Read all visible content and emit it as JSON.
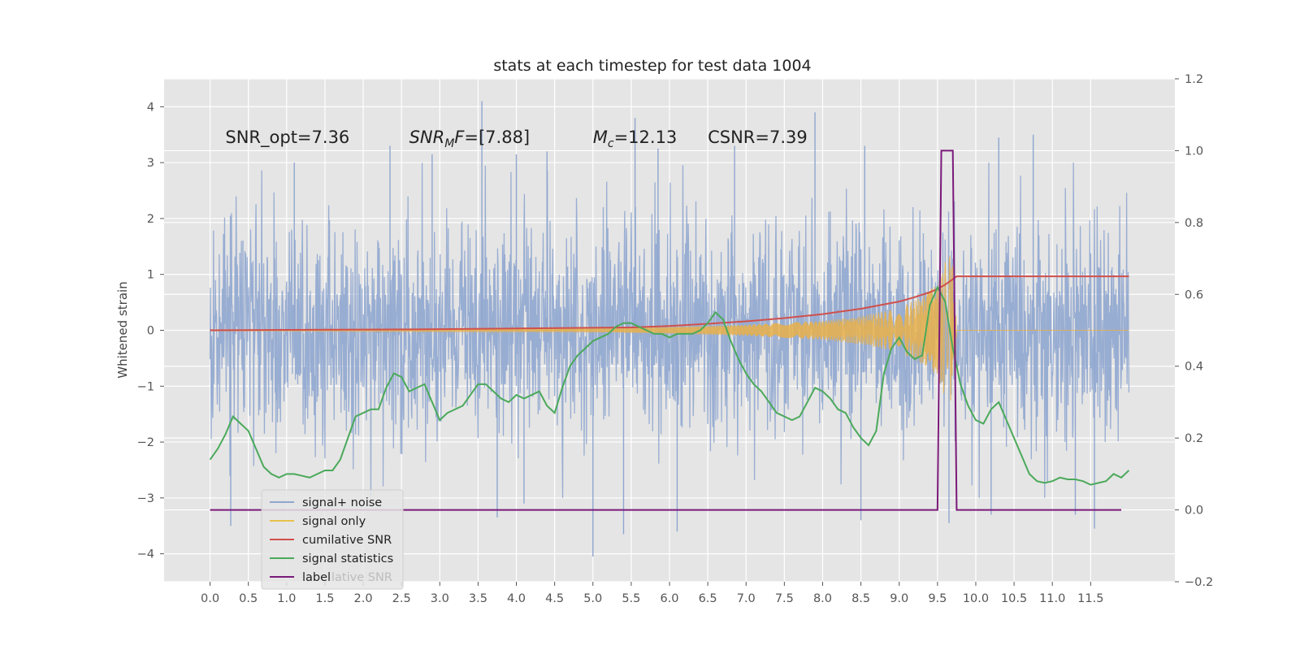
{
  "chart_data": {
    "type": "line",
    "title": "stats at each timestep for test data 1004",
    "ylabel": "Whitened strain",
    "xlabel": "",
    "xlim": [
      -0.6,
      12.6
    ],
    "ylim": [
      -4.5,
      4.5
    ],
    "y2lim": [
      -0.2,
      1.2
    ],
    "grid": true,
    "background": "#e5e5e5",
    "x_ticks": [
      "0.0",
      "0.5",
      "1.0",
      "1.5",
      "2.0",
      "2.5",
      "3.0",
      "3.5",
      "4.0",
      "4.5",
      "5.0",
      "5.5",
      "6.0",
      "6.5",
      "7.0",
      "7.5",
      "8.0",
      "8.5",
      "9.0",
      "9.5",
      "10.0",
      "10.5",
      "11.0",
      "11.5"
    ],
    "y_ticks": [
      "4",
      "3",
      "2",
      "1",
      "0",
      "−1",
      "−2",
      "−3",
      "−4"
    ],
    "y2_ticks": [
      "1.2",
      "1.0",
      "0.8",
      "0.6",
      "0.4",
      "0.2",
      "0.0",
      "−0.2"
    ],
    "annotations": [
      {
        "text": "SNR_opt=7.36",
        "x": 0.2,
        "y": 3.35
      },
      {
        "text": "SNR_MF=[7.88]",
        "x": 2.6,
        "y": 3.35
      },
      {
        "text": "M_c=12.13",
        "x": 5.0,
        "y": 3.35
      },
      {
        "text": "CSNR=7.39",
        "x": 6.5,
        "y": 3.35
      }
    ],
    "legend": {
      "position": "lower-left",
      "entries": [
        {
          "label": "signal+ noise",
          "color": "#8fa6cf"
        },
        {
          "label": "signal only",
          "color": "#e8c14a"
        },
        {
          "label": "cumilative SNR",
          "color": "#d0504c"
        },
        {
          "label": "signal statistics",
          "color": "#4aa95a"
        },
        {
          "label": "label",
          "color": "#7a1a7a"
        }
      ],
      "ghost_text": "lative SNR"
    },
    "series": [
      {
        "name": "signal+ noise",
        "kind": "noise-band",
        "axis": "left",
        "color": "#8fa6cf",
        "x_range": [
          0.0,
          12.0
        ],
        "typical_envelope": [
          -2.0,
          2.0
        ],
        "spikes": [
          {
            "x": 0.27,
            "y": -3.5
          },
          {
            "x": 3.55,
            "y": 4.1
          },
          {
            "x": 5.0,
            "y": -4.05
          },
          {
            "x": 5.4,
            "y": -3.65
          },
          {
            "x": 5.55,
            "y": 3.8
          },
          {
            "x": 6.1,
            "y": -3.6
          },
          {
            "x": 7.9,
            "y": 3.9
          },
          {
            "x": 9.65,
            "y": -3.45
          },
          {
            "x": 11.55,
            "y": -3.55
          },
          {
            "x": 1.1,
            "y": 3.0
          },
          {
            "x": 2.35,
            "y": 3.3
          },
          {
            "x": 2.9,
            "y": 3.15
          },
          {
            "x": 4.0,
            "y": 3.15
          },
          {
            "x": 4.4,
            "y": 3.2
          },
          {
            "x": 5.85,
            "y": 3.25
          },
          {
            "x": 6.85,
            "y": 3.3
          },
          {
            "x": 8.55,
            "y": 3.3
          },
          {
            "x": 10.3,
            "y": 3.45
          },
          {
            "x": 10.75,
            "y": 3.5
          },
          {
            "x": 3.75,
            "y": -3.35
          },
          {
            "x": 4.1,
            "y": -3.1
          },
          {
            "x": 8.5,
            "y": -3.4
          },
          {
            "x": 10.2,
            "y": -3.3
          },
          {
            "x": 11.3,
            "y": -3.3
          }
        ]
      },
      {
        "name": "signal only",
        "kind": "chirp",
        "axis": "left",
        "color": "#e8b04a",
        "x_range": [
          0.0,
          12.0
        ],
        "merger_x": 9.75,
        "amplitude": [
          [
            0.0,
            0.01
          ],
          [
            5.0,
            0.03
          ],
          [
            6.0,
            0.06
          ],
          [
            7.0,
            0.1
          ],
          [
            8.0,
            0.17
          ],
          [
            8.5,
            0.25
          ],
          [
            9.0,
            0.4
          ],
          [
            9.3,
            0.6
          ],
          [
            9.5,
            0.85
          ],
          [
            9.65,
            1.4
          ],
          [
            9.72,
            1.1
          ],
          [
            9.75,
            0.0
          ]
        ]
      },
      {
        "name": "cumilative SNR",
        "axis": "right",
        "color": "#d0504c",
        "x": [
          0.0,
          1.0,
          2.0,
          3.0,
          4.0,
          5.0,
          5.5,
          6.0,
          6.5,
          7.0,
          7.5,
          8.0,
          8.5,
          9.0,
          9.2,
          9.4,
          9.5,
          9.6,
          9.7,
          9.75,
          10.0,
          11.0,
          12.0
        ],
        "values": [
          0.5,
          0.501,
          0.502,
          0.503,
          0.505,
          0.507,
          0.508,
          0.512,
          0.518,
          0.525,
          0.534,
          0.545,
          0.56,
          0.58,
          0.592,
          0.606,
          0.615,
          0.627,
          0.642,
          0.65,
          0.65,
          0.65,
          0.65
        ]
      },
      {
        "name": "signal statistics",
        "axis": "right",
        "color": "#4aa95a",
        "x": [
          0.0,
          0.1,
          0.2,
          0.3,
          0.4,
          0.5,
          0.6,
          0.7,
          0.8,
          0.9,
          1.0,
          1.1,
          1.2,
          1.3,
          1.4,
          1.5,
          1.6,
          1.7,
          1.8,
          1.9,
          2.0,
          2.1,
          2.2,
          2.3,
          2.4,
          2.5,
          2.6,
          2.7,
          2.8,
          2.9,
          3.0,
          3.1,
          3.2,
          3.3,
          3.4,
          3.5,
          3.6,
          3.7,
          3.8,
          3.9,
          4.0,
          4.1,
          4.2,
          4.3,
          4.4,
          4.5,
          4.6,
          4.7,
          4.8,
          4.9,
          5.0,
          5.1,
          5.2,
          5.3,
          5.4,
          5.5,
          5.6,
          5.7,
          5.8,
          5.9,
          6.0,
          6.1,
          6.2,
          6.3,
          6.4,
          6.5,
          6.6,
          6.7,
          6.8,
          6.9,
          7.0,
          7.1,
          7.2,
          7.3,
          7.4,
          7.5,
          7.6,
          7.7,
          7.8,
          7.9,
          8.0,
          8.1,
          8.2,
          8.3,
          8.4,
          8.5,
          8.6,
          8.7,
          8.8,
          8.9,
          9.0,
          9.1,
          9.2,
          9.3,
          9.4,
          9.5,
          9.6,
          9.7,
          9.8,
          9.9,
          10.0,
          10.1,
          10.2,
          10.3,
          10.4,
          10.5,
          10.6,
          10.7,
          10.8,
          10.9,
          11.0,
          11.1,
          11.2,
          11.3,
          11.4,
          11.5,
          11.6,
          11.7,
          11.8,
          11.9,
          12.0
        ],
        "values": [
          0.14,
          0.17,
          0.21,
          0.26,
          0.24,
          0.22,
          0.17,
          0.12,
          0.1,
          0.09,
          0.1,
          0.1,
          0.095,
          0.09,
          0.1,
          0.11,
          0.11,
          0.14,
          0.2,
          0.26,
          0.27,
          0.28,
          0.28,
          0.34,
          0.38,
          0.37,
          0.33,
          0.34,
          0.35,
          0.3,
          0.25,
          0.27,
          0.28,
          0.29,
          0.32,
          0.35,
          0.35,
          0.33,
          0.31,
          0.3,
          0.32,
          0.31,
          0.32,
          0.33,
          0.29,
          0.27,
          0.34,
          0.4,
          0.43,
          0.45,
          0.47,
          0.48,
          0.49,
          0.51,
          0.52,
          0.52,
          0.51,
          0.5,
          0.49,
          0.49,
          0.48,
          0.49,
          0.49,
          0.49,
          0.5,
          0.52,
          0.55,
          0.53,
          0.47,
          0.42,
          0.38,
          0.35,
          0.33,
          0.3,
          0.27,
          0.26,
          0.25,
          0.26,
          0.3,
          0.34,
          0.33,
          0.31,
          0.28,
          0.27,
          0.23,
          0.2,
          0.18,
          0.22,
          0.38,
          0.45,
          0.48,
          0.44,
          0.42,
          0.43,
          0.57,
          0.62,
          0.58,
          0.45,
          0.35,
          0.29,
          0.25,
          0.24,
          0.28,
          0.3,
          0.25,
          0.2,
          0.15,
          0.1,
          0.08,
          0.075,
          0.08,
          0.09,
          0.085,
          0.085,
          0.08,
          0.07,
          0.075,
          0.08,
          0.1,
          0.09,
          0.11
        ]
      },
      {
        "name": "label",
        "axis": "right",
        "color": "#7a1a7a",
        "x": [
          0.0,
          9.5,
          9.55,
          9.7,
          9.75,
          11.9
        ],
        "values": [
          0.0,
          0.0,
          1.0,
          1.0,
          0.0,
          0.0
        ]
      }
    ]
  }
}
